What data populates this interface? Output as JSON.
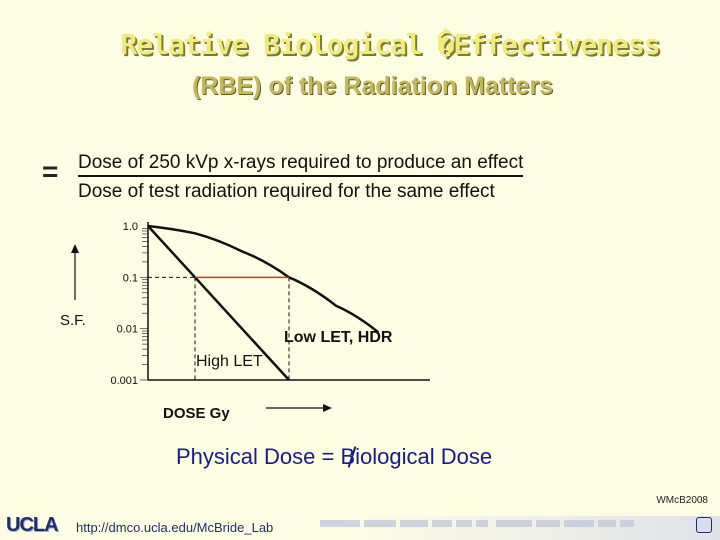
{
  "title": {
    "line1": "Relative Biological �Effectiveness",
    "line2": "(RBE) of the Radiation Matters"
  },
  "formula": {
    "equals_sign": "=",
    "numerator": "Dose of 250 kVp x-rays required to produce an effect",
    "denominator": "Dose of test radiation required for the same effect"
  },
  "chart_data": {
    "type": "line",
    "y_scale": "log",
    "ylim": [
      0.001,
      1.0
    ],
    "ytick_labels": [
      "1.0",
      "0.1",
      "0.01",
      "0.001"
    ],
    "ylabel": "S.F.",
    "xlabel": "DOSE Gy",
    "series": [
      {
        "name": "High LET",
        "x": [
          0,
          1,
          2,
          3
        ],
        "y": [
          1.0,
          0.1,
          0.01,
          0.001
        ]
      },
      {
        "name": "Low LET, HDR",
        "x": [
          0,
          1,
          2,
          3,
          4,
          4.9
        ],
        "y": [
          1.0,
          0.72,
          0.32,
          0.1,
          0.028,
          0.0085
        ]
      }
    ],
    "xlim": [
      0,
      6
    ],
    "reference": {
      "sf": 0.1,
      "from_series": "High LET",
      "to_series": "Low LET, HDR",
      "color": "#c0392b"
    }
  },
  "footer_statement": {
    "text": "Physical Dose = Biological Dose"
  },
  "credit": "WMcB2008",
  "footer": {
    "logo": "UCLA",
    "url": "http://dmco.ucla.edu/McBride_Lab"
  },
  "colors": {
    "title_yellow": "#f2ea7a",
    "subtitle_gold": "#c5b85c",
    "statement_blue": "#1a1a8c",
    "reference_red": "#c0392b"
  }
}
